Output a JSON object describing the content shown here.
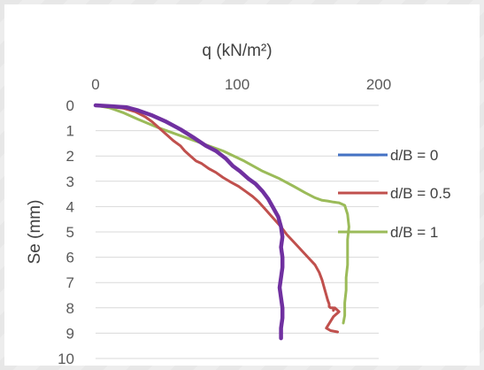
{
  "chart_data": {
    "type": "line",
    "title": "",
    "xlabel": "q (kN/m²)",
    "ylabel": "Se (mm)",
    "x_axis_position": "top",
    "y_axis_inverted": true,
    "xlim": [
      0,
      200
    ],
    "ylim": [
      0,
      10
    ],
    "x_ticks": [
      "0",
      "100",
      "200"
    ],
    "y_ticks": [
      "0",
      "1",
      "2",
      "3",
      "4",
      "5",
      "6",
      "7",
      "8",
      "9",
      "10"
    ],
    "grid": "horizontal",
    "legend_position": "right",
    "series": [
      {
        "name": "d/B = 0",
        "color": "#4472c4",
        "x": [
          0,
          12,
          22,
          30,
          40,
          50,
          60,
          70,
          78,
          85,
          92,
          97,
          102,
          108,
          113,
          118,
          122,
          125,
          127,
          129,
          131,
          132,
          131,
          132,
          132,
          131,
          130,
          131,
          132,
          132,
          131,
          131
        ],
        "y": [
          0,
          0.04,
          0.08,
          0.2,
          0.4,
          0.65,
          0.95,
          1.3,
          1.6,
          1.8,
          2.1,
          2.4,
          2.6,
          2.9,
          3.1,
          3.4,
          3.7,
          4.0,
          4.2,
          4.4,
          4.8,
          5.2,
          5.6,
          6.0,
          6.4,
          6.8,
          7.2,
          7.6,
          8.0,
          8.4,
          8.8,
          9.2
        ]
      },
      {
        "name": "d/B = 0.5",
        "color": "#c0504d",
        "x": [
          0,
          10,
          20,
          28,
          35,
          40,
          45,
          50,
          55,
          60,
          63,
          67,
          71,
          75,
          80,
          85,
          90,
          96,
          101,
          106,
          111,
          115,
          119,
          123,
          127,
          131,
          135,
          140,
          145,
          150,
          155,
          158,
          160,
          161,
          162,
          163,
          164,
          165,
          165,
          166,
          167,
          168,
          168,
          169,
          172,
          168,
          163,
          166,
          171
        ],
        "y": [
          0,
          0.05,
          0.12,
          0.25,
          0.45,
          0.65,
          0.9,
          1.15,
          1.4,
          1.6,
          1.8,
          2.0,
          2.2,
          2.3,
          2.5,
          2.65,
          2.85,
          3.05,
          3.2,
          3.4,
          3.6,
          3.8,
          4.05,
          4.3,
          4.55,
          4.8,
          5.1,
          5.4,
          5.7,
          6.0,
          6.3,
          6.6,
          6.9,
          7.1,
          7.3,
          7.5,
          7.7,
          7.85,
          7.95,
          8.0,
          8.0,
          8.0,
          8.1,
          8.0,
          8.15,
          8.35,
          8.8,
          8.9,
          8.95
        ]
      },
      {
        "name": "d/B = 1",
        "color": "#9bbb59",
        "x": [
          0,
          10,
          20,
          30,
          45,
          60,
          75,
          90,
          105,
          118,
          130,
          140,
          148,
          155,
          160,
          164,
          168,
          172,
          176,
          178,
          179,
          178,
          178,
          178,
          177,
          177,
          176,
          176,
          175
        ],
        "y": [
          0,
          0.1,
          0.3,
          0.55,
          0.9,
          1.2,
          1.5,
          1.8,
          2.2,
          2.6,
          2.9,
          3.2,
          3.45,
          3.65,
          3.75,
          3.78,
          3.82,
          3.85,
          3.95,
          4.3,
          4.8,
          5.3,
          5.8,
          6.3,
          6.8,
          7.3,
          7.8,
          8.3,
          8.6
        ]
      }
    ]
  }
}
